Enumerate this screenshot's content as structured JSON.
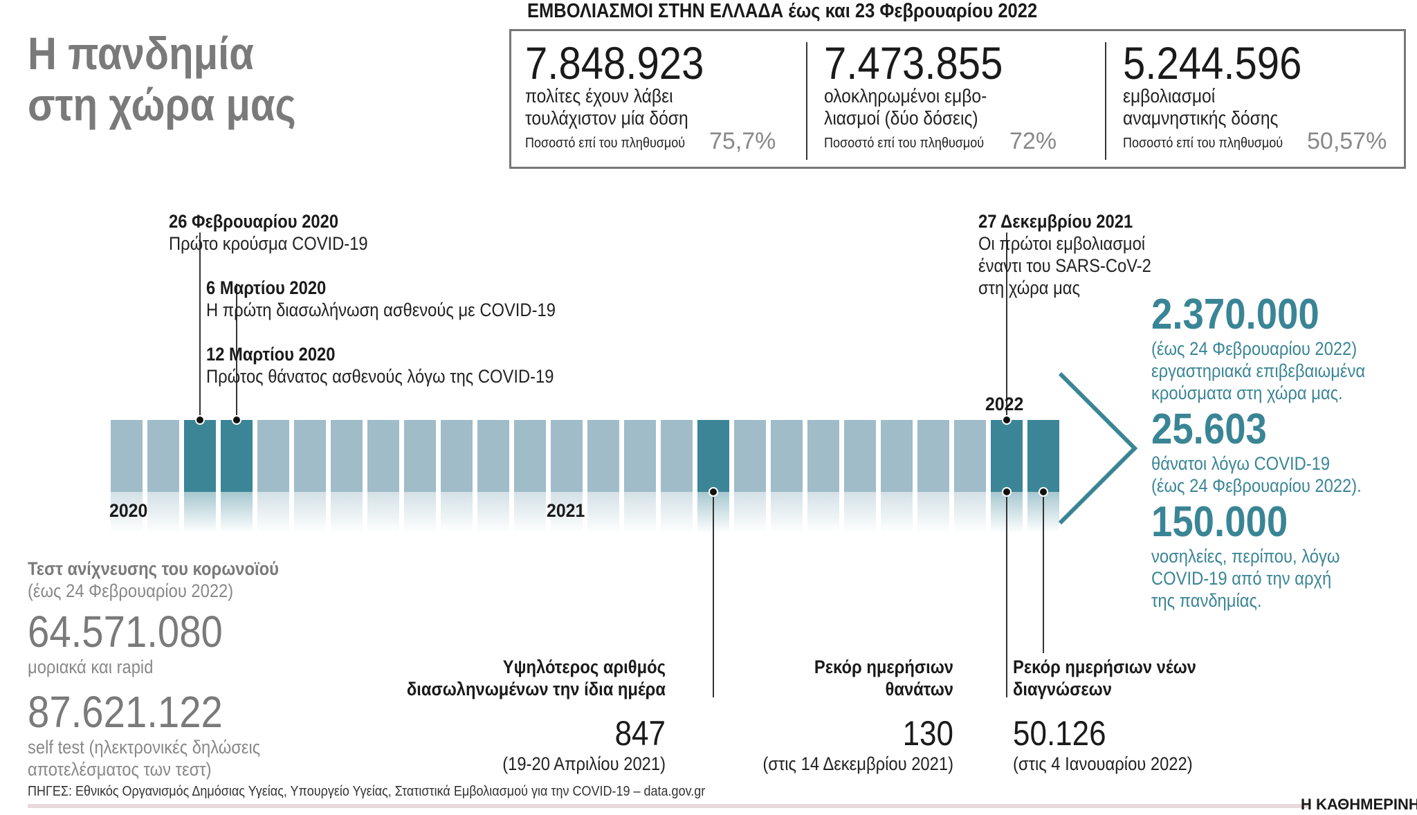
{
  "title": {
    "line1": "Η πανδημία",
    "line2": "στη χώρα μας"
  },
  "vaccinations": {
    "heading_bold": "ΕΜΒΟΛΙΑΣΜΟΙ ΣΤΗΝ ΕΛΛΑΔΑ",
    "heading_rest": " έως και 23 Φεβρουαρίου 2022",
    "pct_label": "Ποσοστό επί του πληθυσμού",
    "items": [
      {
        "number": "7.848.923",
        "line1": "πολίτες έχουν λάβει",
        "line2": "τουλάχιστον μία δόση",
        "percent": "75,7%"
      },
      {
        "number": "7.473.855",
        "line1": "ολοκληρωμένοι εμβο-",
        "line2": "λιασμοί (δύο δόσεις)",
        "percent": "72%"
      },
      {
        "number": "5.244.596",
        "line1": "εμβολιασμοί",
        "line2": "αναμνηστικής δόσης",
        "percent": "50,57%"
      }
    ]
  },
  "timeline": {
    "months_count": 26,
    "highlighted_months": [
      2,
      3,
      16,
      24,
      25
    ],
    "year_labels": [
      "2020",
      "2021",
      "2022"
    ],
    "events_top": [
      {
        "date": "26 Φεβρουαρίου 2020",
        "text": "Πρώτο κρούσμα COVID-19",
        "month": 2
      },
      {
        "date": "6 Μαρτίου 2020",
        "text": "Η πρώτη διασωλήνωση ασθενούς με COVID-19",
        "month": 3
      },
      {
        "date": "12 Μαρτίου 2020",
        "text": "Πρώτος θάνατος ασθενούς λόγω της COVID-19",
        "month": 3
      },
      {
        "date": "27 Δεκεμβρίου 2021",
        "text_lines": [
          "Οι πρώτοι εμβολιασμοί",
          "έναντι του SARS-CoV-2",
          "στη χώρα μας"
        ],
        "month": 24
      }
    ]
  },
  "totals": [
    {
      "number": "2.370.000",
      "lines": [
        "(έως 24 Φεβρουαρίου 2022)",
        "εργαστηριακά επιβεβαιωμένα",
        "κρούσματα στη χώρα μας."
      ]
    },
    {
      "number": "25.603",
      "lines": [
        "θάνατοι λόγω COVID-19",
        "(έως 24 Φεβρουαρίου 2022)."
      ]
    },
    {
      "number": "150.000",
      "lines": [
        "νοσηλείες, περίπου, λόγω",
        "COVID-19 από την αρχή",
        "της πανδημίας."
      ]
    }
  ],
  "tests": {
    "title": "Τεστ ανίχνευσης του κορωνοϊού",
    "subtitle": "(έως 24 Φεβρουαρίου 2022)",
    "items": [
      {
        "number": "64.571.080",
        "lines": [
          "μοριακά και rapid"
        ]
      },
      {
        "number": "87.621.122",
        "lines": [
          "self test (ηλεκτρονικές δηλώσεις",
          "αποτελέσματος των τεστ)"
        ]
      }
    ]
  },
  "records": [
    {
      "label_lines": [
        "Υψηλότερος αριθμός",
        "διασωληνωμένων την ίδια ημέρα"
      ],
      "number": "847",
      "note": "(19-20 Απριλίου 2021)",
      "month": 16
    },
    {
      "label_lines": [
        "Ρεκόρ ημερήσιων",
        "θανάτων"
      ],
      "number": "130",
      "note": "(στις 14 Δεκεμβρίου 2021)",
      "month": 24
    },
    {
      "label_lines": [
        "Ρεκόρ ημερήσιων νέων",
        "διαγνώσεων"
      ],
      "number": "50.126",
      "note": "(στις 4 Ιανουαρίου 2022)",
      "month": 25
    }
  ],
  "sources": "ΠΗΓΕΣ: Εθνικός Οργανισμός Δημόσιας Υγείας, Υπουργείο Υγείας, Στατιστικά Εμβολιασμού για την COVID-19 – data.gov.gr",
  "brand": "Η ΚΑΘΗΜΕΡΙΝΗ",
  "colors": {
    "bar_light": "#9fbcc8",
    "bar_dark": "#3b8597",
    "accent": "#3a8595",
    "grey_text": "#7a7a7a"
  }
}
